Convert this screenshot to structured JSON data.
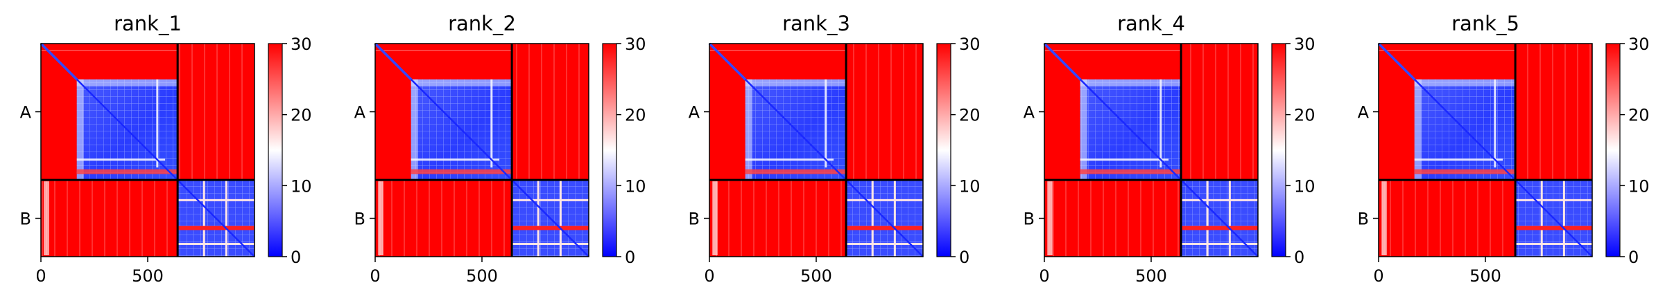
{
  "chart_data": [
    {
      "type": "heatmap",
      "title": "rank_1",
      "x_ticks": [
        0,
        500
      ],
      "y_ticks": [
        "A",
        "B"
      ],
      "colorbar_ticks": [
        0,
        10,
        20,
        30
      ],
      "vmin": 0,
      "vmax": 30,
      "colormap": "bwr",
      "chain_boundary": 640,
      "total_length": 1000
    },
    {
      "type": "heatmap",
      "title": "rank_2",
      "x_ticks": [
        0,
        500
      ],
      "y_ticks": [
        "A",
        "B"
      ],
      "colorbar_ticks": [
        0,
        10,
        20,
        30
      ],
      "vmin": 0,
      "vmax": 30,
      "colormap": "bwr",
      "chain_boundary": 640,
      "total_length": 1000
    },
    {
      "type": "heatmap",
      "title": "rank_3",
      "x_ticks": [
        0,
        500
      ],
      "y_ticks": [
        "A",
        "B"
      ],
      "colorbar_ticks": [
        0,
        10,
        20,
        30
      ],
      "vmin": 0,
      "vmax": 30,
      "colormap": "bwr",
      "chain_boundary": 640,
      "total_length": 1000
    },
    {
      "type": "heatmap",
      "title": "rank_4",
      "x_ticks": [
        0,
        500
      ],
      "y_ticks": [
        "A",
        "B"
      ],
      "colorbar_ticks": [
        0,
        10,
        20,
        30
      ],
      "vmin": 0,
      "vmax": 30,
      "colormap": "bwr",
      "chain_boundary": 640,
      "total_length": 1000
    },
    {
      "type": "heatmap",
      "title": "rank_5",
      "x_ticks": [
        0,
        500
      ],
      "y_ticks": [
        "A",
        "B"
      ],
      "colorbar_ticks": [
        0,
        10,
        20,
        30
      ],
      "vmin": 0,
      "vmax": 30,
      "colormap": "bwr",
      "chain_boundary": 640,
      "total_length": 1000
    }
  ],
  "colors": {
    "low": "#0000ff",
    "mid": "#ffffff",
    "high": "#ff0000",
    "frame": "#000000"
  }
}
